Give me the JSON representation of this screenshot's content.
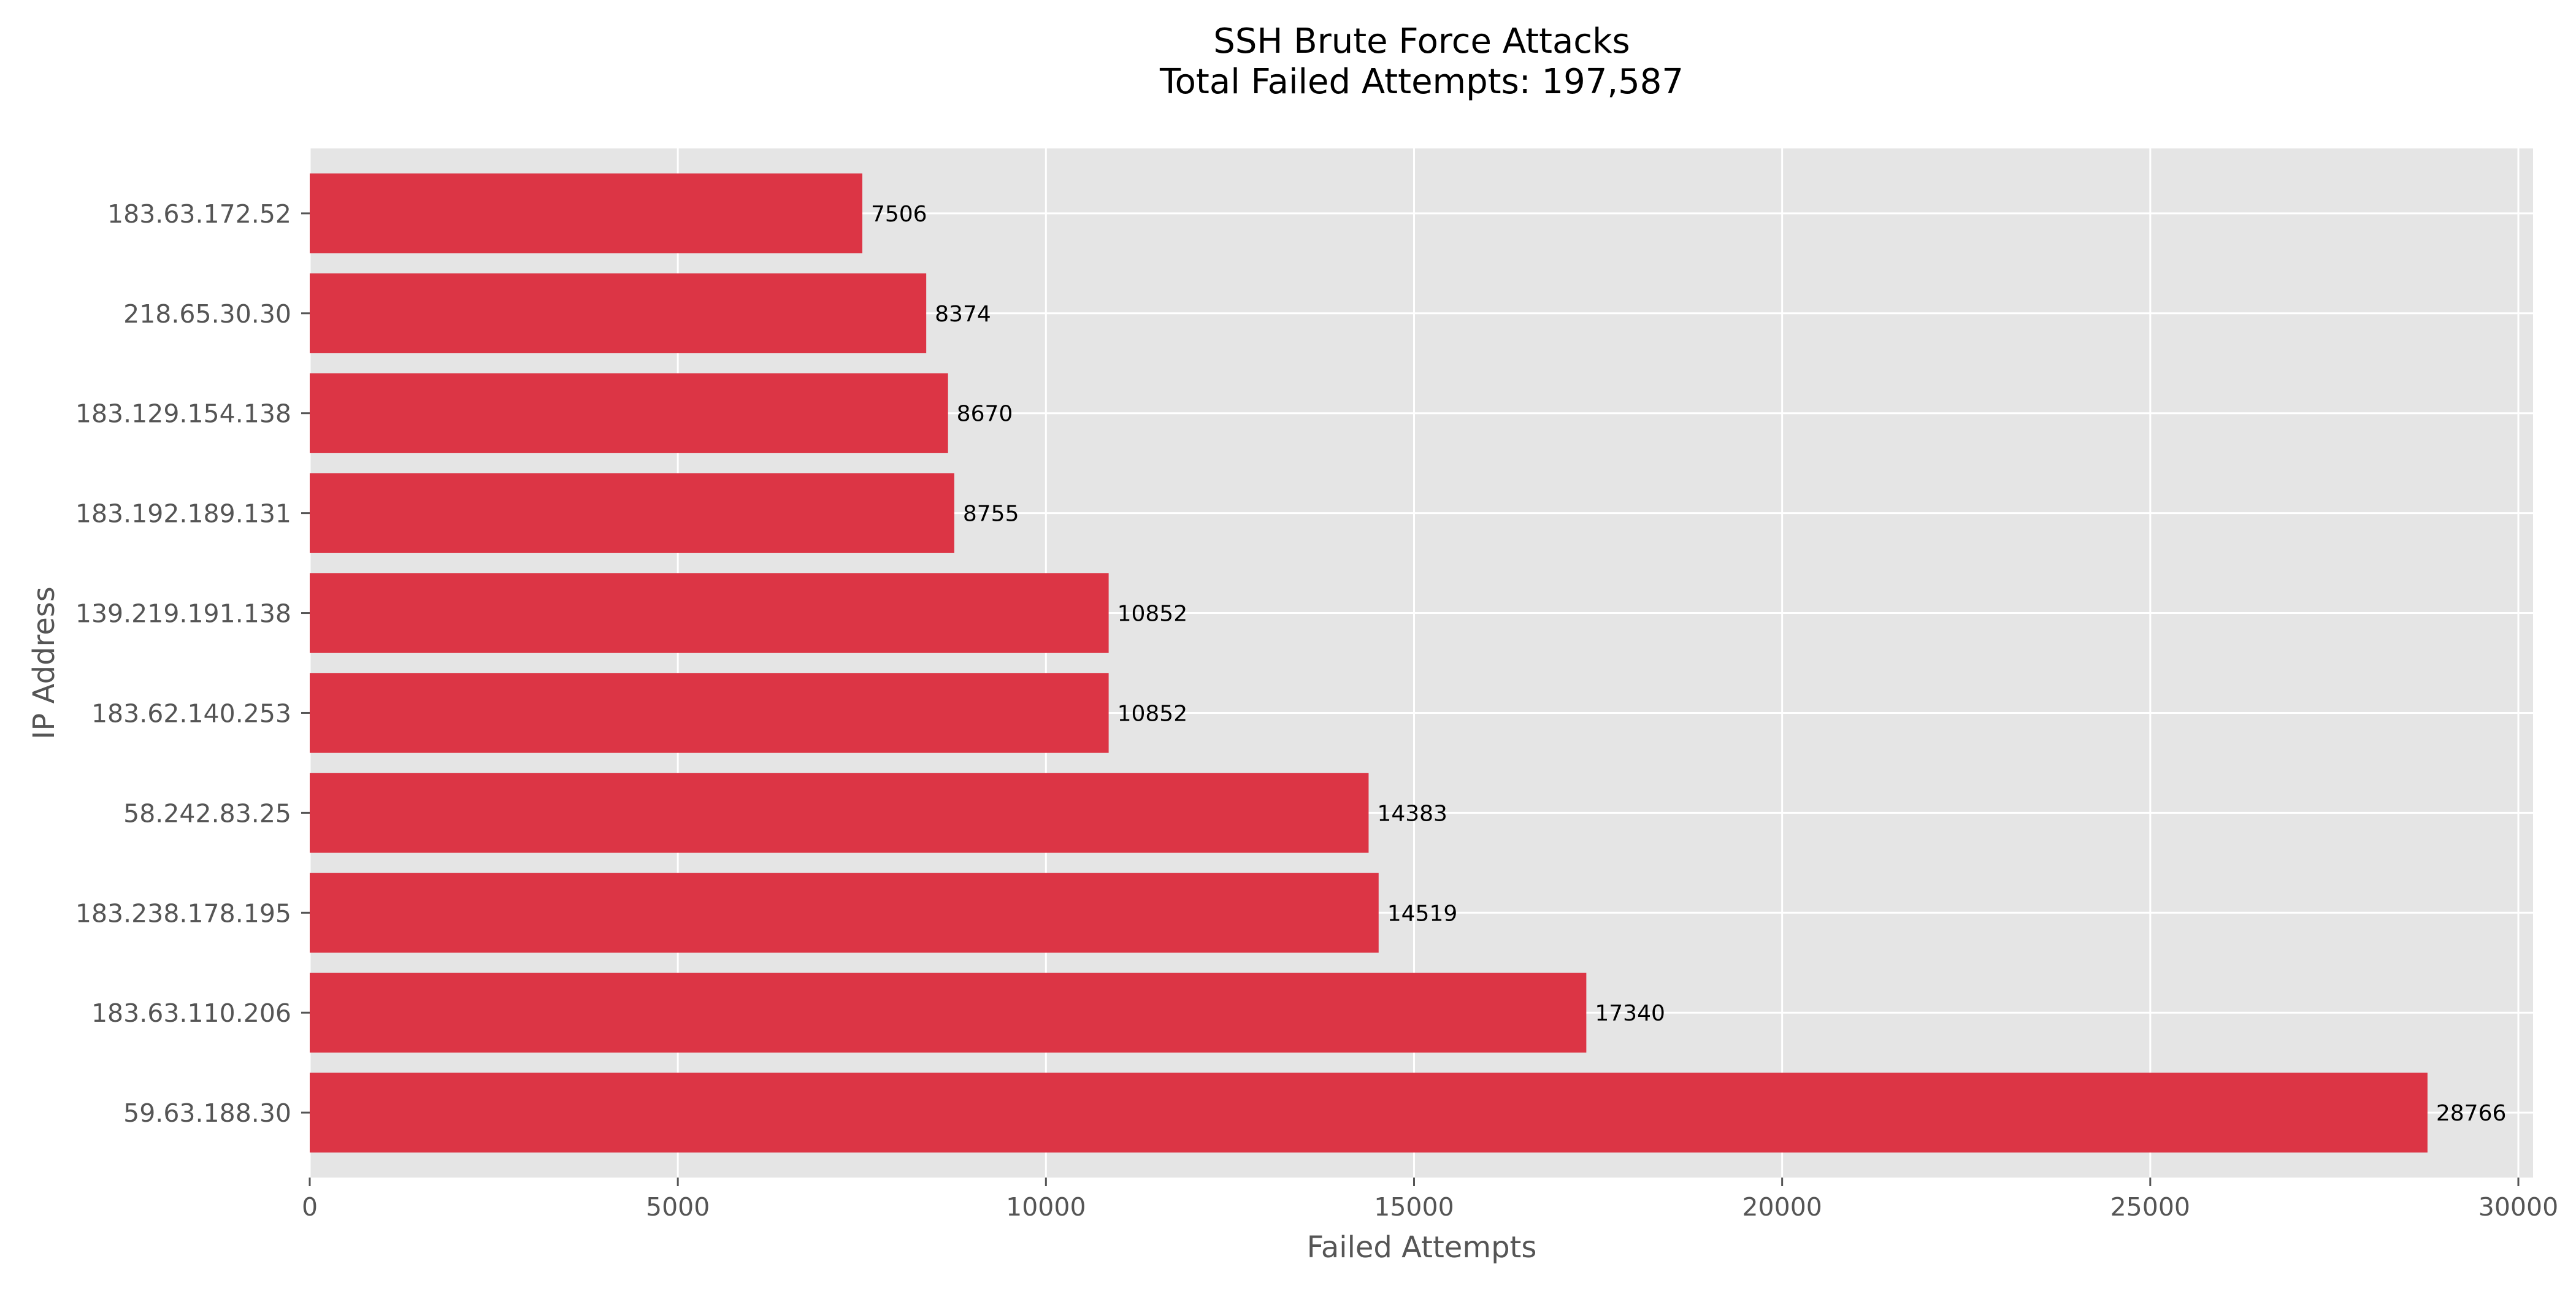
{
  "chart_data": {
    "type": "bar",
    "orientation": "horizontal",
    "title": "SSH Brute Force Attacks",
    "subtitle": "Total Failed Attempts: 197,587",
    "xlabel": "Failed Attempts",
    "ylabel": "IP Address",
    "xlim": [
      0,
      30200
    ],
    "xticks": [
      0,
      5000,
      10000,
      15000,
      20000,
      25000,
      30000
    ],
    "categories": [
      "183.63.172.52",
      "218.65.30.30",
      "183.129.154.138",
      "183.192.189.131",
      "139.219.191.138",
      "183.62.140.253",
      "58.242.83.25",
      "183.238.178.195",
      "183.63.110.206",
      "59.63.188.30"
    ],
    "values": [
      7506,
      8374,
      8670,
      8755,
      10852,
      10852,
      14383,
      14519,
      17340,
      28766
    ],
    "data_labels": [
      "7506",
      "8374",
      "8670",
      "8755",
      "10852",
      "10852",
      "14383",
      "14519",
      "17340",
      "28766"
    ],
    "bar_color": "#dc3545",
    "plot_background": "#e5e5e5",
    "grid": true,
    "grid_color": "#ffffff",
    "legend": false
  }
}
